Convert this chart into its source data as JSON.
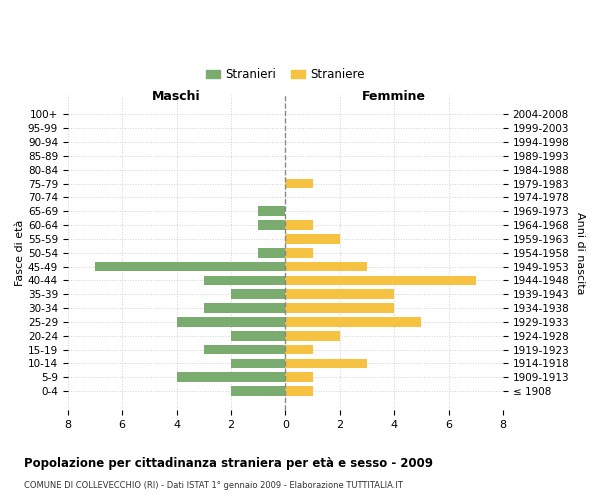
{
  "age_groups": [
    "100+",
    "95-99",
    "90-94",
    "85-89",
    "80-84",
    "75-79",
    "70-74",
    "65-69",
    "60-64",
    "55-59",
    "50-54",
    "45-49",
    "40-44",
    "35-39",
    "30-34",
    "25-29",
    "20-24",
    "15-19",
    "10-14",
    "5-9",
    "0-4"
  ],
  "birth_years": [
    "≤ 1908",
    "1909-1913",
    "1914-1918",
    "1919-1923",
    "1924-1928",
    "1929-1933",
    "1934-1938",
    "1939-1943",
    "1944-1948",
    "1949-1953",
    "1954-1958",
    "1959-1963",
    "1964-1968",
    "1969-1973",
    "1974-1978",
    "1979-1983",
    "1984-1988",
    "1989-1993",
    "1994-1998",
    "1999-2003",
    "2004-2008"
  ],
  "maschi": [
    0,
    0,
    0,
    0,
    0,
    0,
    0,
    1,
    1,
    0,
    1,
    7,
    3,
    2,
    3,
    4,
    2,
    3,
    2,
    4,
    2
  ],
  "femmine": [
    0,
    0,
    0,
    0,
    0,
    1,
    0,
    0,
    1,
    2,
    1,
    3,
    7,
    4,
    4,
    5,
    2,
    1,
    3,
    1,
    1
  ],
  "color_maschi": "#7aac6f",
  "color_femmine": "#f5c242",
  "title": "Popolazione per cittadinanza straniera per età e sesso - 2009",
  "subtitle": "COMUNE DI COLLEVECCHIO (RI) - Dati ISTAT 1° gennaio 2009 - Elaborazione TUTTITALIA.IT",
  "xlabel_left": "Maschi",
  "xlabel_right": "Femmine",
  "ylabel_left": "Fasce di età",
  "ylabel_right": "Anni di nascita",
  "legend_maschi": "Stranieri",
  "legend_femmine": "Straniere",
  "xlim": 8,
  "background_color": "#ffffff",
  "grid_color": "#d0d0d0"
}
